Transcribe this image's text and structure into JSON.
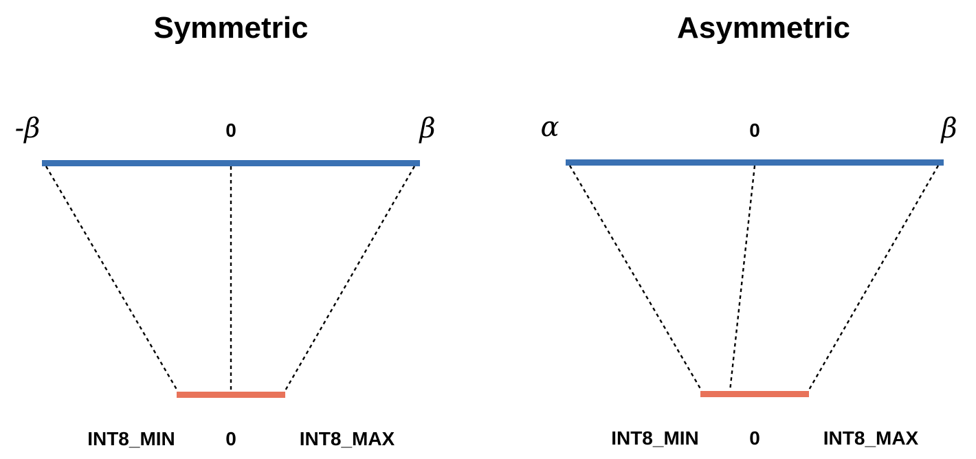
{
  "colors": {
    "float_range": "#3a71b3",
    "int_range": "#e8735a",
    "text": "#000000"
  },
  "panels": [
    {
      "title": "Symmetric",
      "float_range": {
        "left_label": "-β",
        "zero_label": "0",
        "right_label": "β"
      },
      "int_range": {
        "min_label": "INT8_MIN",
        "zero_label": "0",
        "max_label": "INT8_MAX"
      }
    },
    {
      "title": "Asymmetric",
      "float_range": {
        "left_label": "α",
        "zero_label": "0",
        "right_label": "β"
      },
      "int_range": {
        "min_label": "INT8_MIN",
        "zero_label": "0",
        "max_label": "INT8_MAX"
      }
    }
  ]
}
